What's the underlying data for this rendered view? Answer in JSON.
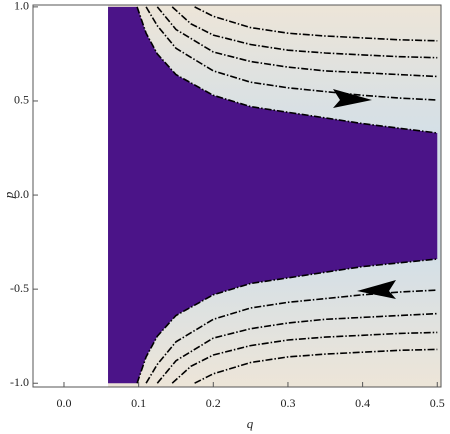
{
  "chart_data": {
    "type": "contour",
    "xlabel": "q",
    "ylabel": "p",
    "xlim": [
      -0.0415,
      0.505
    ],
    "ylim": [
      -1.02,
      1.01
    ],
    "xticks": [
      {
        "value": 0,
        "label": "0.0"
      },
      0.1,
      0.2,
      0.3,
      0.4,
      0.5
    ],
    "yticks": [
      {
        "value": -1,
        "label": "-1.0"
      },
      -0.5,
      {
        "value": 0,
        "label": "0.0"
      },
      0.5,
      {
        "value": 1,
        "label": "1.0"
      }
    ],
    "region_left": 0.059,
    "region_color": "#4b1488",
    "line_color": "#000000",
    "series": [
      {
        "x": [
          0.098,
          0.11,
          0.125,
          0.15,
          0.2,
          0.25,
          0.3,
          0.35,
          0.4,
          0.45,
          0.5
        ],
        "values": [
          1.0,
          0.86,
          0.75,
          0.64,
          0.53,
          0.47,
          0.44,
          0.41,
          0.38,
          0.355,
          0.33
        ]
      },
      {
        "x": [
          0.11,
          0.125,
          0.15,
          0.2,
          0.25,
          0.3,
          0.35,
          0.4,
          0.45,
          0.5
        ],
        "values": [
          1.0,
          0.9,
          0.78,
          0.66,
          0.6,
          0.57,
          0.55,
          0.53,
          0.515,
          0.505
        ]
      },
      {
        "x": [
          0.125,
          0.15,
          0.2,
          0.25,
          0.3,
          0.35,
          0.4,
          0.45,
          0.5
        ],
        "values": [
          1.0,
          0.88,
          0.76,
          0.71,
          0.68,
          0.66,
          0.65,
          0.64,
          0.63
        ]
      },
      {
        "x": [
          0.145,
          0.17,
          0.2,
          0.25,
          0.3,
          0.35,
          0.4,
          0.45,
          0.5
        ],
        "values": [
          1.0,
          0.91,
          0.85,
          0.8,
          0.77,
          0.755,
          0.745,
          0.735,
          0.73
        ]
      },
      {
        "x": [
          0.175,
          0.2,
          0.25,
          0.3,
          0.35,
          0.4,
          0.45,
          0.5
        ],
        "values": [
          1.0,
          0.95,
          0.89,
          0.86,
          0.845,
          0.835,
          0.825,
          0.82
        ]
      },
      {
        "x": [
          0.098,
          0.11,
          0.125,
          0.15,
          0.2,
          0.25,
          0.3,
          0.35,
          0.4,
          0.45,
          0.5
        ],
        "values": [
          -1.0,
          -0.86,
          -0.75,
          -0.64,
          -0.53,
          -0.47,
          -0.44,
          -0.41,
          -0.38,
          -0.36,
          -0.34
        ]
      },
      {
        "x": [
          0.11,
          0.125,
          0.15,
          0.2,
          0.25,
          0.3,
          0.35,
          0.4,
          0.45,
          0.5
        ],
        "values": [
          -1.0,
          -0.9,
          -0.78,
          -0.66,
          -0.6,
          -0.57,
          -0.55,
          -0.53,
          -0.515,
          -0.505
        ]
      },
      {
        "x": [
          0.125,
          0.15,
          0.2,
          0.25,
          0.3,
          0.35,
          0.4,
          0.45,
          0.5
        ],
        "values": [
          -1.0,
          -0.88,
          -0.76,
          -0.71,
          -0.68,
          -0.66,
          -0.65,
          -0.64,
          -0.63
        ]
      },
      {
        "x": [
          0.145,
          0.17,
          0.2,
          0.25,
          0.3,
          0.35,
          0.4,
          0.45,
          0.5
        ],
        "values": [
          -1.0,
          -0.91,
          -0.85,
          -0.8,
          -0.77,
          -0.755,
          -0.745,
          -0.735,
          -0.73
        ]
      },
      {
        "x": [
          0.175,
          0.2,
          0.25,
          0.3,
          0.35,
          0.4,
          0.45,
          0.5
        ],
        "values": [
          -1.0,
          -0.95,
          -0.89,
          -0.86,
          -0.845,
          -0.835,
          -0.825,
          -0.82
        ]
      }
    ]
  }
}
